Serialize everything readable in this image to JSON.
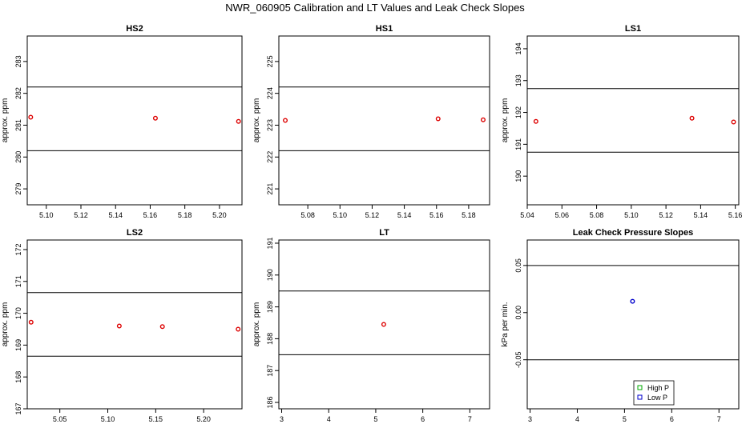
{
  "figure": {
    "title": "NWR_060905  Calibration and LT Values and Leak Check Slopes"
  },
  "colors": {
    "point": "#dd0000",
    "high_p": "#00aa00",
    "low_p": "#0000cc",
    "line": "#000000"
  },
  "chart_data": [
    {
      "id": "hs2",
      "type": "scatter",
      "title": "HS2",
      "ylabel": "approx. ppm",
      "xlim": [
        5.089,
        5.213
      ],
      "ylim": [
        278.5,
        283.8
      ],
      "xticks": [
        5.1,
        5.12,
        5.14,
        5.16,
        5.18,
        5.2
      ],
      "xtick_labels": [
        "5.10",
        "5.12",
        "5.14",
        "5.16",
        "5.18",
        "5.20"
      ],
      "yticks": [
        279,
        280,
        281,
        282,
        283
      ],
      "ytick_labels": [
        "279",
        "280",
        "281",
        "282",
        "283"
      ],
      "hlines": [
        280.2,
        282.2
      ],
      "series": [
        {
          "color_key": "point",
          "x": [
            5.091,
            5.163,
            5.211
          ],
          "y": [
            281.25,
            281.22,
            281.12
          ]
        }
      ]
    },
    {
      "id": "hs1",
      "type": "scatter",
      "title": "HS1",
      "ylabel": "approx. ppm",
      "xlim": [
        5.062,
        5.193
      ],
      "ylim": [
        220.5,
        225.8
      ],
      "xticks": [
        5.08,
        5.1,
        5.12,
        5.14,
        5.16,
        5.18
      ],
      "xtick_labels": [
        "5.08",
        "5.10",
        "5.12",
        "5.14",
        "5.16",
        "5.18"
      ],
      "yticks": [
        221,
        222,
        223,
        224,
        225
      ],
      "ytick_labels": [
        "221",
        "222",
        "223",
        "224",
        "225"
      ],
      "hlines": [
        222.2,
        224.2
      ],
      "series": [
        {
          "color_key": "point",
          "x": [
            5.066,
            5.161,
            5.189
          ],
          "y": [
            223.15,
            223.2,
            223.17
          ]
        }
      ]
    },
    {
      "id": "ls1",
      "type": "scatter",
      "title": "LS1",
      "ylabel": "approx. ppm",
      "xlim": [
        5.04,
        5.162
      ],
      "ylim": [
        189.1,
        194.4
      ],
      "xticks": [
        5.04,
        5.06,
        5.08,
        5.1,
        5.12,
        5.14,
        5.16
      ],
      "xtick_labels": [
        "5.04",
        "5.06",
        "5.08",
        "5.10",
        "5.12",
        "5.14",
        "5.16"
      ],
      "yticks": [
        190,
        191,
        192,
        193,
        194
      ],
      "ytick_labels": [
        "190",
        "191",
        "192",
        "193",
        "194"
      ],
      "hlines": [
        190.75,
        192.75
      ],
      "series": [
        {
          "color_key": "point",
          "x": [
            5.045,
            5.135,
            5.159
          ],
          "y": [
            191.72,
            191.82,
            191.7
          ]
        }
      ]
    },
    {
      "id": "ls2",
      "type": "scatter",
      "title": "LS2",
      "ylabel": "approx. ppm",
      "xlim": [
        5.016,
        5.24
      ],
      "ylim": [
        167.0,
        172.3
      ],
      "xticks": [
        5.05,
        5.1,
        5.15,
        5.2
      ],
      "xtick_labels": [
        "5.05",
        "5.10",
        "5.15",
        "5.20"
      ],
      "yticks": [
        167,
        168,
        169,
        170,
        171,
        172
      ],
      "ytick_labels": [
        "167",
        "168",
        "169",
        "170",
        "171",
        "172"
      ],
      "hlines": [
        168.65,
        170.65
      ],
      "series": [
        {
          "color_key": "point",
          "x": [
            5.02,
            5.112,
            5.157,
            5.236
          ],
          "y": [
            169.72,
            169.6,
            169.58,
            169.5
          ]
        }
      ]
    },
    {
      "id": "lt",
      "type": "scatter",
      "title": "LT",
      "ylabel": "approx. ppm",
      "xlim": [
        2.94,
        7.42
      ],
      "ylim": [
        185.8,
        191.1
      ],
      "xticks": [
        3,
        4,
        5,
        6,
        7
      ],
      "xtick_labels": [
        "3",
        "4",
        "5",
        "6",
        "7"
      ],
      "yticks": [
        186,
        187,
        188,
        189,
        190,
        191
      ],
      "ytick_labels": [
        "186",
        "187",
        "188",
        "189",
        "190",
        "191"
      ],
      "hlines": [
        187.5,
        189.5
      ],
      "series": [
        {
          "color_key": "point",
          "x": [
            5.17
          ],
          "y": [
            188.45
          ]
        }
      ]
    },
    {
      "id": "leak",
      "type": "scatter",
      "title": "Leak Check Pressure Slopes",
      "ylabel": "kPa per min.",
      "xlim": [
        2.94,
        7.42
      ],
      "ylim": [
        -0.102,
        0.077
      ],
      "xticks": [
        3,
        4,
        5,
        6,
        7
      ],
      "xtick_labels": [
        "3",
        "4",
        "5",
        "6",
        "7"
      ],
      "yticks": [
        -0.05,
        0.0,
        0.05
      ],
      "ytick_labels": [
        "-0.05",
        "0.00",
        "0.05"
      ],
      "hlines": [
        -0.05,
        0.05
      ],
      "series": [
        {
          "name": "High P",
          "color_key": "high_p",
          "x": [],
          "y": []
        },
        {
          "name": "Low P",
          "color_key": "low_p",
          "x": [
            5.17
          ],
          "y": [
            0.012
          ]
        }
      ],
      "legend": {
        "position": "bottom-center",
        "entries": [
          "High P",
          "Low P"
        ]
      }
    }
  ]
}
